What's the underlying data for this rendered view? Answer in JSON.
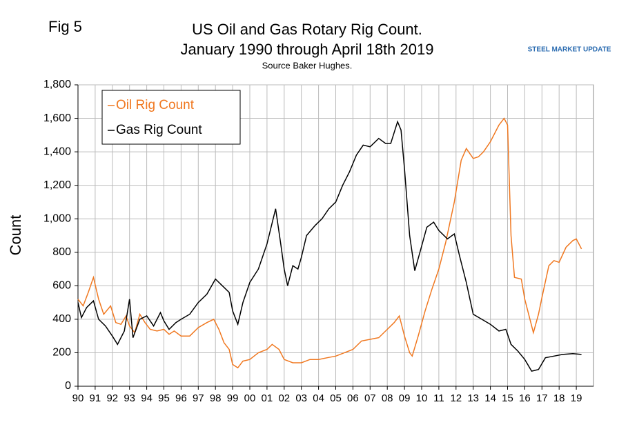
{
  "chart_data": {
    "type": "line",
    "figure_label": "Fig 5",
    "title": "US Oil and Gas Rotary Rig Count.",
    "subtitle": "January 1990 through April 18th 2019",
    "source": "Source Baker Hughes.",
    "logo": "STEEL MARKET UPDATE",
    "y_label": "Count",
    "grid": true,
    "legend": "top-left",
    "xlim": [
      1990,
      2020
    ],
    "xticks": [
      {
        "value": 1990,
        "label": "90"
      },
      {
        "value": 1991,
        "label": "91"
      },
      {
        "value": 1992,
        "label": "92"
      },
      {
        "value": 1993,
        "label": "93"
      },
      {
        "value": 1994,
        "label": "94"
      },
      {
        "value": 1995,
        "label": "95"
      },
      {
        "value": 1996,
        "label": "96"
      },
      {
        "value": 1997,
        "label": "97"
      },
      {
        "value": 1998,
        "label": "98"
      },
      {
        "value": 1999,
        "label": "99"
      },
      {
        "value": 2000,
        "label": "00"
      },
      {
        "value": 2001,
        "label": "01"
      },
      {
        "value": 2002,
        "label": "02"
      },
      {
        "value": 2003,
        "label": "03"
      },
      {
        "value": 2004,
        "label": "04"
      },
      {
        "value": 2005,
        "label": "05"
      },
      {
        "value": 2006,
        "label": "06"
      },
      {
        "value": 2007,
        "label": "07"
      },
      {
        "value": 2008,
        "label": "08"
      },
      {
        "value": 2009,
        "label": "09"
      },
      {
        "value": 2010,
        "label": "10"
      },
      {
        "value": 2011,
        "label": "11"
      },
      {
        "value": 2012,
        "label": "12"
      },
      {
        "value": 2013,
        "label": "13"
      },
      {
        "value": 2014,
        "label": "14"
      },
      {
        "value": 2015,
        "label": "15"
      },
      {
        "value": 2016,
        "label": "16"
      },
      {
        "value": 2017,
        "label": "17"
      },
      {
        "value": 2018,
        "label": "18"
      },
      {
        "value": 2019,
        "label": "19"
      }
    ],
    "ylim": [
      0,
      1800
    ],
    "yticks": [
      0,
      200,
      400,
      600,
      800,
      {
        "value": 1000,
        "label": "1,000"
      },
      {
        "value": 1200,
        "label": "1,200"
      },
      {
        "value": 1400,
        "label": "1,400"
      },
      {
        "value": 1600,
        "label": "1,600"
      },
      {
        "value": 1800,
        "label": "1,800"
      }
    ],
    "series": [
      {
        "name": "Oil Rig Count",
        "color": "#f07820",
        "x": [
          1990.0,
          1990.3,
          1990.6,
          1990.9,
          1991.2,
          1991.5,
          1991.9,
          1992.2,
          1992.5,
          1992.8,
          1993.0,
          1993.3,
          1993.6,
          1993.9,
          1994.2,
          1994.6,
          1995.0,
          1995.3,
          1995.6,
          1996.0,
          1996.5,
          1997.0,
          1997.5,
          1997.9,
          1998.2,
          1998.5,
          1998.8,
          1999.0,
          1999.3,
          1999.6,
          2000.0,
          2000.5,
          2001.0,
          2001.3,
          2001.7,
          2002.0,
          2002.5,
          2003.0,
          2003.5,
          2004.0,
          2004.5,
          2005.0,
          2005.5,
          2006.0,
          2006.5,
          2007.0,
          2007.5,
          2008.0,
          2008.4,
          2008.7,
          2009.0,
          2009.3,
          2009.45,
          2009.8,
          2010.2,
          2010.6,
          2011.0,
          2011.4,
          2011.9,
          2012.3,
          2012.6,
          2013.0,
          2013.3,
          2013.6,
          2014.0,
          2014.5,
          2014.8,
          2015.0,
          2015.2,
          2015.4,
          2015.8,
          2016.0,
          2016.4,
          2016.5,
          2016.8,
          2017.0,
          2017.4,
          2017.7,
          2018.0,
          2018.4,
          2018.8,
          2019.0,
          2019.3
        ],
        "values": [
          520,
          480,
          560,
          650,
          520,
          430,
          480,
          380,
          370,
          420,
          360,
          320,
          430,
          380,
          340,
          330,
          340,
          310,
          330,
          300,
          300,
          350,
          380,
          400,
          340,
          260,
          220,
          130,
          110,
          150,
          160,
          200,
          220,
          250,
          220,
          160,
          140,
          140,
          160,
          160,
          170,
          180,
          200,
          220,
          270,
          280,
          290,
          340,
          380,
          420,
          300,
          200,
          180,
          300,
          450,
          580,
          700,
          860,
          1100,
          1350,
          1420,
          1360,
          1370,
          1400,
          1460,
          1560,
          1600,
          1560,
          900,
          650,
          640,
          520,
          360,
          320,
          430,
          530,
          720,
          750,
          740,
          830,
          870,
          880,
          820
        ]
      },
      {
        "name": "Gas Rig Count",
        "color": "#000000",
        "x": [
          1990.0,
          1990.2,
          1990.5,
          1990.9,
          1991.2,
          1991.6,
          1992.0,
          1992.3,
          1992.7,
          1993.0,
          1993.2,
          1993.6,
          1994.0,
          1994.4,
          1994.8,
          1995.0,
          1995.3,
          1995.7,
          1996.0,
          1996.5,
          1997.0,
          1997.5,
          1998.0,
          1998.4,
          1998.8,
          1999.0,
          1999.3,
          1999.6,
          2000.0,
          2000.5,
          2001.0,
          2001.5,
          2001.8,
          2002.0,
          2002.2,
          2002.5,
          2002.8,
          2003.0,
          2003.3,
          2003.8,
          2004.2,
          2004.6,
          2005.0,
          2005.4,
          2005.8,
          2006.2,
          2006.6,
          2007.0,
          2007.5,
          2007.9,
          2008.2,
          2008.6,
          2008.8,
          2009.0,
          2009.3,
          2009.6,
          2009.9,
          2010.3,
          2010.7,
          2011.0,
          2011.5,
          2011.9,
          2012.2,
          2012.6,
          2013.0,
          2013.5,
          2014.0,
          2014.5,
          2014.9,
          2015.2,
          2015.6,
          2016.0,
          2016.4,
          2016.8,
          2017.2,
          2017.7,
          2018.2,
          2018.8,
          2019.3
        ],
        "values": [
          500,
          410,
          470,
          510,
          400,
          360,
          300,
          250,
          330,
          520,
          290,
          400,
          420,
          360,
          440,
          390,
          340,
          380,
          400,
          430,
          500,
          550,
          640,
          600,
          560,
          450,
          370,
          500,
          620,
          700,
          850,
          1060,
          850,
          700,
          600,
          720,
          700,
          770,
          900,
          960,
          1000,
          1060,
          1100,
          1200,
          1280,
          1380,
          1440,
          1430,
          1480,
          1450,
          1450,
          1580,
          1530,
          1300,
          900,
          690,
          800,
          950,
          980,
          930,
          880,
          910,
          780,
          620,
          430,
          400,
          370,
          330,
          340,
          250,
          210,
          160,
          90,
          100,
          170,
          180,
          190,
          195,
          190
        ]
      }
    ]
  }
}
